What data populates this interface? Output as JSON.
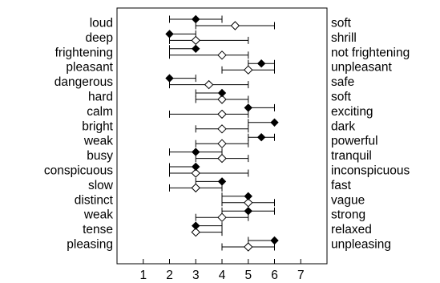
{
  "chart_data": {
    "type": "scatter",
    "title": "",
    "xlabel": "",
    "ylabel": "",
    "xlim": [
      0,
      8
    ],
    "x_ticks": [
      "1",
      "2",
      "3",
      "4",
      "5",
      "6",
      "7"
    ],
    "grid": false,
    "legend": "none",
    "marker_colors": {
      "filled": "#000000",
      "open": "#ffffff",
      "stroke": "#000000"
    },
    "rows": [
      {
        "left": "loud",
        "right": "soft",
        "filled": 3.0,
        "filled_range": [
          2.0,
          4.0
        ],
        "open": 4.5,
        "open_range": [
          3.0,
          6.0
        ]
      },
      {
        "left": "deep",
        "right": "shrill",
        "filled": 2.0,
        "filled_range": [
          2.0,
          3.0
        ],
        "open": 3.0,
        "open_range": [
          2.0,
          5.0
        ]
      },
      {
        "left": "frightening",
        "right": "not frightening",
        "filled": 3.0,
        "filled_range": [
          2.0,
          3.0
        ],
        "open": 4.0,
        "open_range": [
          2.0,
          5.0
        ]
      },
      {
        "left": "pleasant",
        "right": "unpleasant",
        "filled": 5.5,
        "filled_range": [
          5.0,
          6.0
        ],
        "open": 5.0,
        "open_range": [
          4.0,
          6.0
        ]
      },
      {
        "left": "dangerous",
        "right": "safe",
        "filled": 2.0,
        "filled_range": [
          2.0,
          3.0
        ],
        "open": 3.5,
        "open_range": [
          2.0,
          5.0
        ]
      },
      {
        "left": "hard",
        "right": "soft",
        "filled": 4.0,
        "filled_range": [
          3.0,
          4.0
        ],
        "open": 4.0,
        "open_range": [
          3.0,
          5.0
        ]
      },
      {
        "left": "calm",
        "right": "exciting",
        "filled": 5.0,
        "filled_range": [
          5.0,
          6.0
        ],
        "open": 4.0,
        "open_range": [
          2.0,
          5.0
        ]
      },
      {
        "left": "bright",
        "right": "dark",
        "filled": 6.0,
        "filled_range": [
          5.0,
          6.0
        ],
        "open": 4.0,
        "open_range": [
          3.0,
          5.0
        ]
      },
      {
        "left": "weak",
        "right": "powerful",
        "filled": 5.5,
        "filled_range": [
          5.0,
          6.0
        ],
        "open": 4.0,
        "open_range": [
          3.0,
          5.0
        ]
      },
      {
        "left": "busy",
        "right": "tranquil",
        "filled": 3.0,
        "filled_range": [
          2.0,
          4.0
        ],
        "open": 4.0,
        "open_range": [
          3.0,
          5.0
        ]
      },
      {
        "left": "conspicuous",
        "right": "inconspicuous",
        "filled": 3.0,
        "filled_range": [
          2.0,
          3.0
        ],
        "open": 3.0,
        "open_range": [
          2.0,
          5.0
        ]
      },
      {
        "left": "slow",
        "right": "fast",
        "filled": 4.0,
        "filled_range": [
          3.0,
          4.0
        ],
        "open": 3.0,
        "open_range": [
          2.0,
          4.0
        ]
      },
      {
        "left": "distinct",
        "right": "vague",
        "filled": 5.0,
        "filled_range": [
          4.0,
          5.0
        ],
        "open": 5.0,
        "open_range": [
          4.0,
          6.0
        ]
      },
      {
        "left": "weak",
        "right": "strong",
        "filled": 5.0,
        "filled_range": [
          4.0,
          6.0
        ],
        "open": 4.0,
        "open_range": [
          3.0,
          5.0
        ]
      },
      {
        "left": "tense",
        "right": "relaxed",
        "filled": 3.0,
        "filled_range": [
          3.0,
          4.0
        ],
        "open": 3.0,
        "open_range": [
          3.0,
          4.0
        ]
      },
      {
        "left": "pleasing",
        "right": "unpleasing",
        "filled": 6.0,
        "filled_range": [
          5.0,
          6.0
        ],
        "open": 5.0,
        "open_range": [
          4.0,
          6.0
        ]
      }
    ]
  }
}
